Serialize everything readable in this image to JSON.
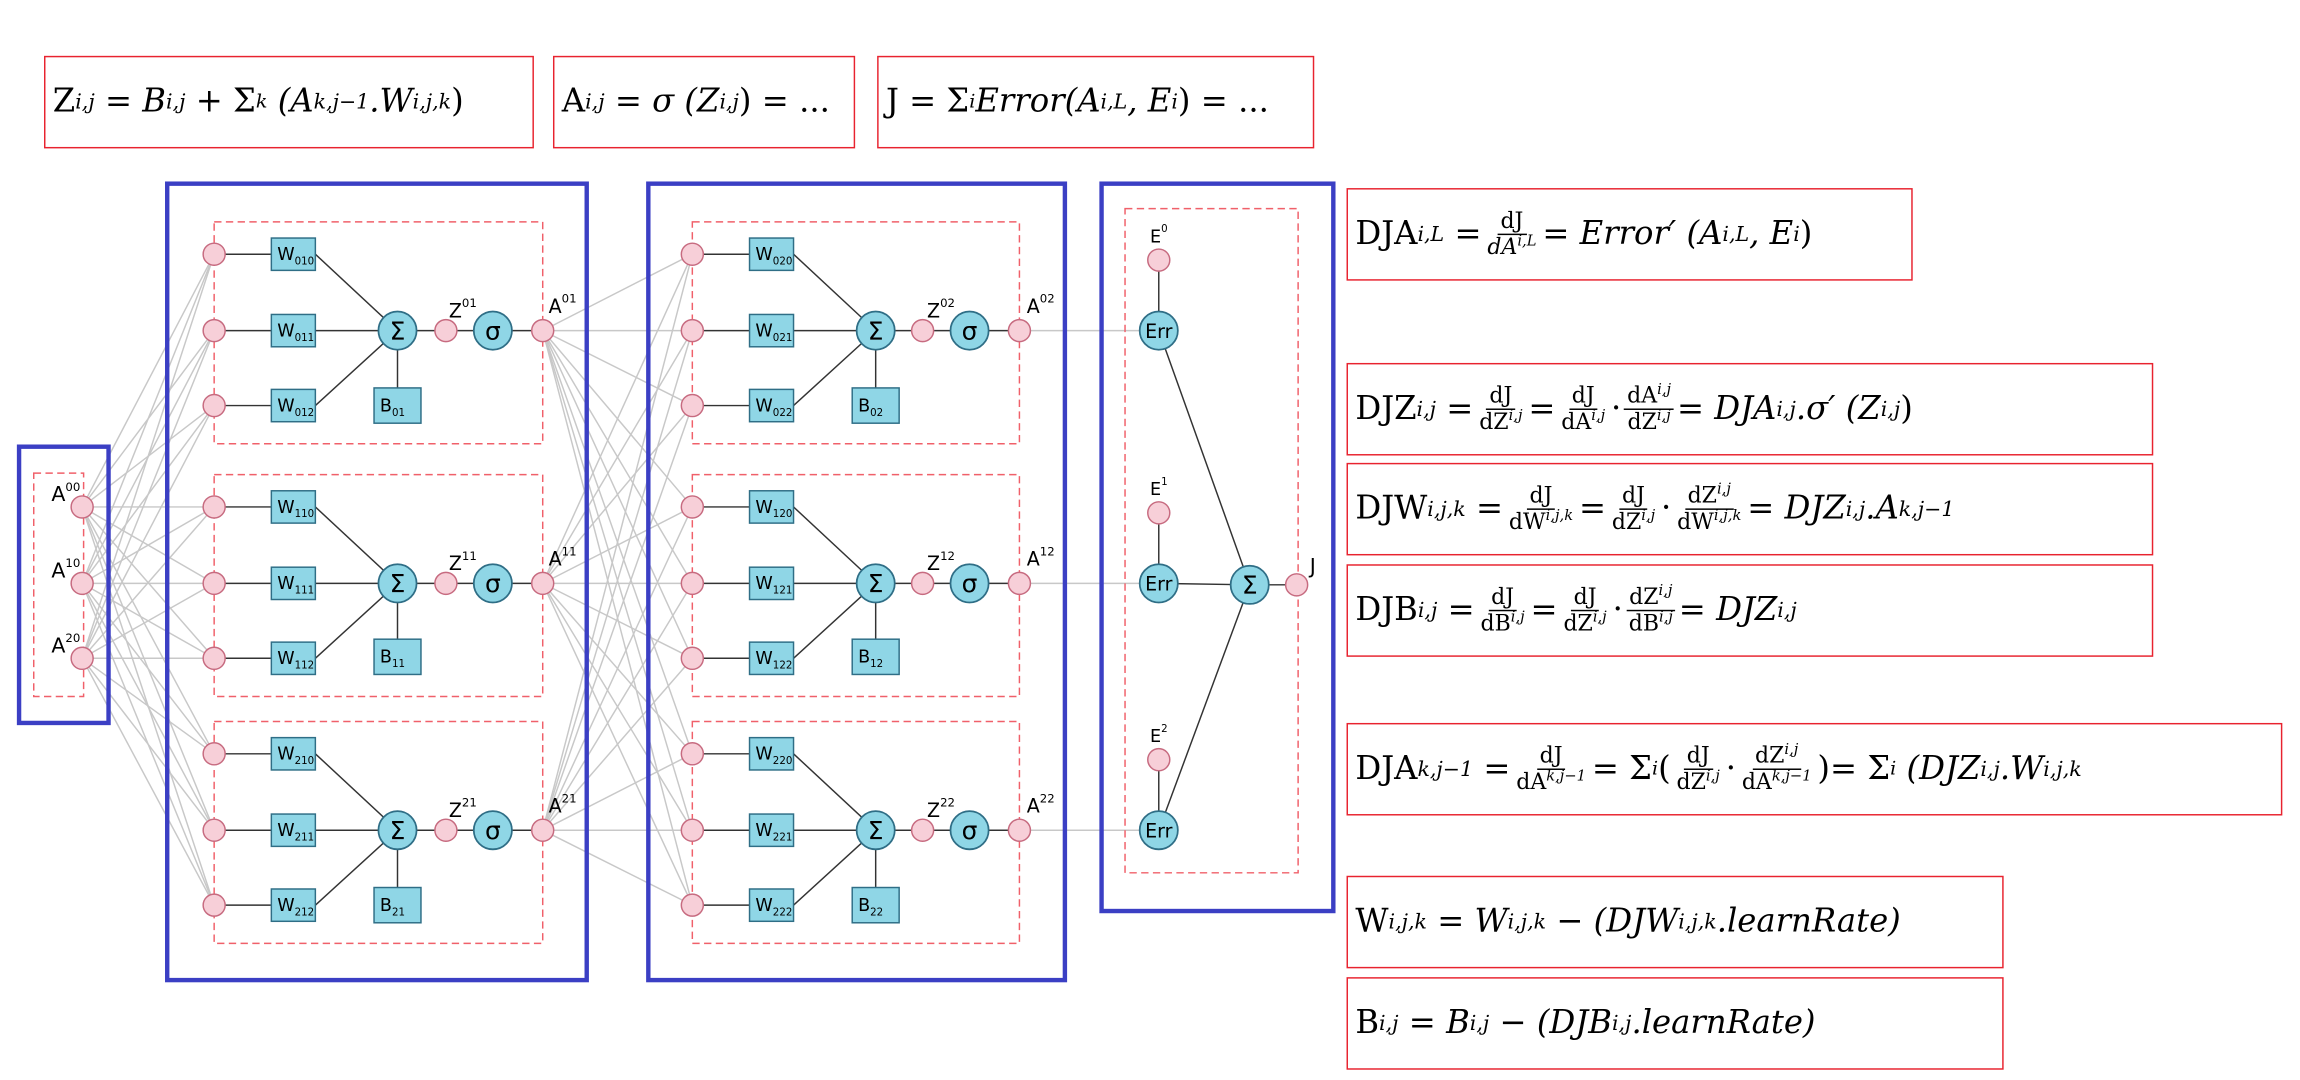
{
  "inputs": {
    "nodes": [
      {
        "id": "in0",
        "label": "A",
        "sup": "00"
      },
      {
        "id": "in1",
        "label": "A",
        "sup": "10"
      },
      {
        "id": "in2",
        "label": "A",
        "sup": "20"
      }
    ]
  },
  "layers": [
    {
      "neurons": [
        {
          "weights": [
            "W",
            "W",
            "W"
          ],
          "weight_subs": [
            "010",
            "011",
            "012"
          ],
          "bias": "B",
          "bias_sup": "01",
          "z": "Z",
          "z_sup": "01",
          "sigma": "σ",
          "sum": "Σ",
          "a": "A",
          "a_sup": "01"
        },
        {
          "weights": [
            "W",
            "W",
            "W"
          ],
          "weight_subs": [
            "110",
            "111",
            "112"
          ],
          "bias": "B",
          "bias_sup": "11",
          "z": "Z",
          "z_sup": "11",
          "sigma": "σ",
          "sum": "Σ",
          "a": "A",
          "a_sup": "11"
        },
        {
          "weights": [
            "W",
            "W",
            "W"
          ],
          "weight_subs": [
            "210",
            "211",
            "212"
          ],
          "bias": "B",
          "bias_sup": "21",
          "z": "Z",
          "z_sup": "21",
          "sigma": "σ",
          "sum": "Σ",
          "a": "A",
          "a_sup": "21"
        }
      ]
    },
    {
      "neurons": [
        {
          "weights": [
            "W",
            "W",
            "W"
          ],
          "weight_subs": [
            "020",
            "021",
            "022"
          ],
          "bias": "B",
          "bias_sup": "02",
          "z": "Z",
          "z_sup": "02",
          "sigma": "σ",
          "sum": "Σ",
          "a": "A",
          "a_sup": "02"
        },
        {
          "weights": [
            "W",
            "W",
            "W"
          ],
          "weight_subs": [
            "120",
            "121",
            "122"
          ],
          "bias": "B",
          "bias_sup": "12",
          "z": "Z",
          "z_sup": "12",
          "sigma": "σ",
          "sum": "Σ",
          "a": "A",
          "a_sup": "12"
        },
        {
          "weights": [
            "W",
            "W",
            "W"
          ],
          "weight_subs": [
            "220",
            "221",
            "222"
          ],
          "bias": "B",
          "bias_sup": "22",
          "z": "Z",
          "z_sup": "22",
          "sigma": "σ",
          "sum": "Σ",
          "a": "A",
          "a_sup": "22"
        }
      ]
    }
  ],
  "error_block": {
    "targets": [
      {
        "label": "E",
        "sup": "0"
      },
      {
        "label": "E",
        "sup": "1"
      },
      {
        "label": "E",
        "sup": "2"
      }
    ],
    "err_label": "Err",
    "sum_label": "Σ",
    "output_label": "J"
  },
  "formulas": {
    "z_def": {
      "lead": "Z",
      "sup": "i,j",
      "rest": "= B",
      "rest_sup": "i,j",
      "sum": "+ Σ",
      "sum_sub": "k",
      "paren": "(A",
      "p_sup": "k,j−1",
      "mid": ".W",
      "m_sup": "i,j,k",
      "close": ")"
    },
    "a_def": {
      "lead": "A",
      "sup": "i,j",
      "rest": "= σ (Z",
      "rest_sup": "i,j",
      "close": ") = ..."
    },
    "j_def": {
      "lead": "J = Σ",
      "sub": "i",
      "rest": " Error(A",
      "r_sup": "i,L",
      "mid": ", E",
      "m_sup": "i",
      "close": ") = ..."
    },
    "dja_out": {
      "lead": "DJA",
      "sup": "i,L",
      "eq": "=",
      "num": "dJ",
      "den": "dA",
      "den_sup": "i,L",
      "rest": "= Error′ (A",
      "r_sup": "i,L",
      "mid": ", E",
      "m_sup": "i",
      "close": ")"
    },
    "djz": {
      "lead": "DJZ",
      "sup": "i,j",
      "eq": "=",
      "f1n": "dJ",
      "f1d": "dZ",
      "f1d_sup": "i,j",
      "eq2": "=",
      "f2n": "dJ",
      "f2d": "dA",
      "f2d_sup": "i,j",
      "dot": "·",
      "f3n": "dA",
      "f3n_sup": "i,j",
      "f3d": "dZ",
      "f3d_sup": "i,j",
      "rest": "= DJA",
      "r_sup": "i,j",
      "mid": ".σ′ (Z",
      "m_sup": "i,j",
      "close": ")"
    },
    "djw": {
      "lead": "DJW",
      "sup": "i,j,k",
      "eq": "=",
      "f1n": "dJ",
      "f1d": "dW",
      "f1d_sup": "i,j,k",
      "eq2": "=",
      "f2n": "dJ",
      "f2d": "dZ",
      "f2d_sup": "i,j",
      "dot": "·",
      "f3n": "dZ",
      "f3n_sup": "i,j",
      "f3d": "dW",
      "f3d_sup": "i,j,k",
      "rest": "= DJZ",
      "r_sup": "i,j",
      "mid": ".A",
      "m_sup": "k,j−1"
    },
    "djb": {
      "lead": "DJB",
      "sup": "i,j",
      "eq": "=",
      "f1n": "dJ",
      "f1d": "dB",
      "f1d_sup": "i,j",
      "eq2": "=",
      "f2n": "dJ",
      "f2d": "dZ",
      "f2d_sup": "i,j",
      "dot": "·",
      "f3n": "dZ",
      "f3n_sup": "i,j",
      "f3d": "dB",
      "f3d_sup": "i,j",
      "rest": "= DJZ",
      "r_sup": "i,j"
    },
    "dja_prev": {
      "lead": "DJA",
      "sup": "k,j−1",
      "eq": "=",
      "f1n": "dJ",
      "f1d": "dA",
      "f1d_sup": "k,j−1",
      "eq2": "= Σ",
      "sub": "i",
      "open": "(",
      "f2n": "dJ",
      "f2d": "dZ",
      "f2d_sup": "i,j",
      "dot": "·",
      "f3n": "dZ",
      "f3n_sup": "i,j",
      "f3d": "dA",
      "f3d_sup": "k,j−1",
      "close1": ")",
      "rest": "= Σ",
      "rest_sub": "i",
      "paren": "(DJZ",
      "p_sup": "i,j",
      "mid": ".W",
      "m_sup": "i,j,k"
    },
    "w_update": {
      "lead": "W",
      "sup": "i,j,k",
      "rest": "= W",
      "r_sup": "i,j,k",
      "mid": "− (DJW",
      "m_sup": "i,j,k",
      "close": ".learnRate)"
    },
    "b_update": {
      "lead": "B",
      "sup": "i,j",
      "rest": "= B",
      "r_sup": "i,j",
      "mid": "− (DJB",
      "m_sup": "i,j",
      "close": ".learnRate)"
    }
  },
  "colors": {
    "block_border": "#3b3fc4",
    "dashed": "#f0606a",
    "formula_border": "#e8232f",
    "node_fill": "#f7cfd8",
    "node_stroke": "#c76b80",
    "cyan_fill": "#8fd6e6",
    "cyan_stroke": "#2f6e86",
    "wire": "#c8c8c8",
    "internal": "#333333"
  }
}
